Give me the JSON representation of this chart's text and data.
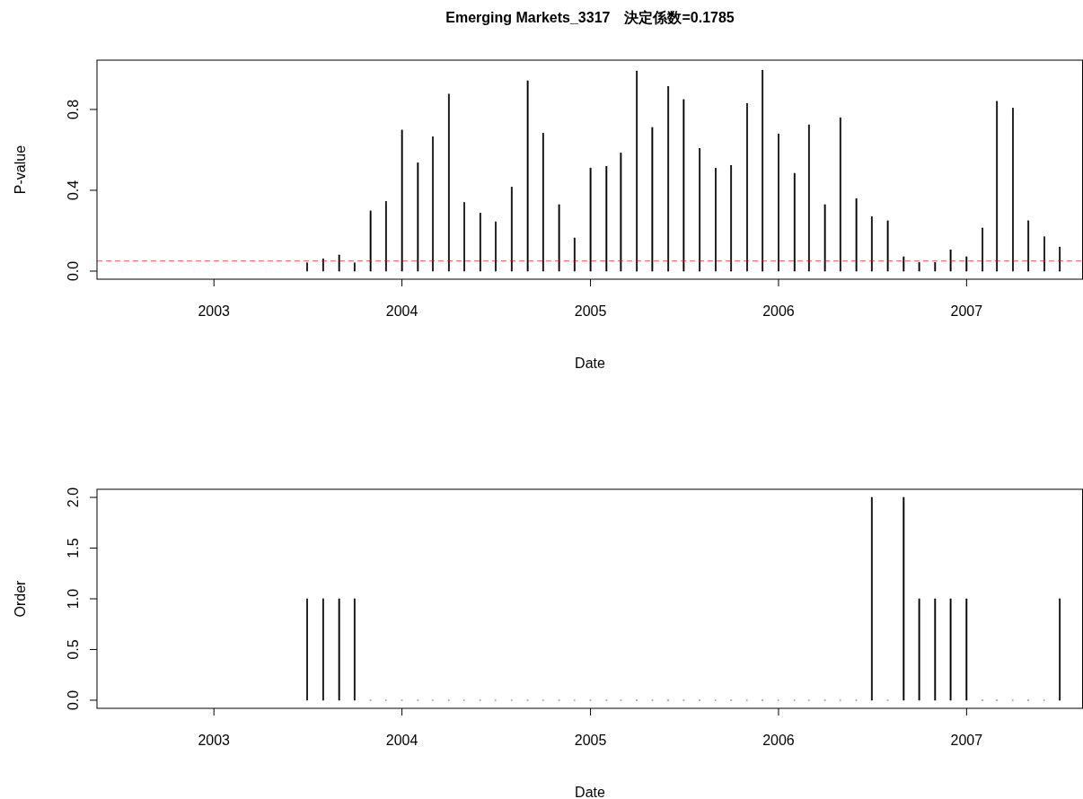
{
  "chart_data": [
    {
      "type": "bar",
      "title": "Emerging Markets_3317　決定係数=0.1785",
      "xlabel": "Date",
      "ylabel": "P-value",
      "x": [
        "2003-07",
        "2003-08",
        "2003-09",
        "2003-10",
        "2003-11",
        "2003-12",
        "2004-01",
        "2004-02",
        "2004-03",
        "2004-04",
        "2004-05",
        "2004-06",
        "2004-07",
        "2004-08",
        "2004-09",
        "2004-10",
        "2004-11",
        "2004-12",
        "2005-01",
        "2005-02",
        "2005-03",
        "2005-04",
        "2005-05",
        "2005-06",
        "2005-07",
        "2005-08",
        "2005-09",
        "2005-10",
        "2005-11",
        "2005-12",
        "2006-01",
        "2006-02",
        "2006-03",
        "2006-04",
        "2006-05",
        "2006-06",
        "2006-07",
        "2006-08",
        "2006-09",
        "2006-10",
        "2006-11",
        "2006-12",
        "2007-01",
        "2007-02",
        "2007-03",
        "2007-04",
        "2007-05",
        "2007-06",
        "2007-07"
      ],
      "series": [
        {
          "color": "#000000",
          "values": [
            0.041,
            0.061,
            0.08,
            0.041,
            0.298,
            0.344,
            0.698,
            0.536,
            0.665,
            0.876,
            0.339,
            0.287,
            0.244,
            0.415,
            0.942,
            0.683,
            0.329,
            0.164,
            0.51,
            0.518,
            0.585,
            0.99,
            0.711,
            0.914,
            0.849,
            0.607,
            0.51,
            0.523,
            0.83,
            0.994,
            0.679,
            0.484,
            0.724,
            0.329,
            0.759,
            0.359,
            0.27,
            0.249,
            0.071,
            0.043,
            0.043,
            0.104,
            0.071,
            0.213,
            0.84,
            0.806,
            0.249,
            0.17,
            0.119
          ]
        }
      ],
      "xlim": [
        "2002-05-19",
        "2007-08-15"
      ],
      "xticks": [
        {
          "value": "2003",
          "label": "2003"
        },
        {
          "value": "2004",
          "label": "2004"
        },
        {
          "value": "2005",
          "label": "2005"
        },
        {
          "value": "2006",
          "label": "2006"
        },
        {
          "value": "2007",
          "label": "2007"
        }
      ],
      "ylim": [
        -0.04,
        1.044
      ],
      "yticks": [
        {
          "value": 0,
          "label": "0.0"
        },
        {
          "value": 0.4,
          "label": "0.4"
        },
        {
          "value": 0.8,
          "label": "0.8"
        }
      ],
      "ref_lines": [
        {
          "axis": "y",
          "value": 0.05,
          "color": "#ff0000",
          "line_style": "dashed"
        }
      ]
    },
    {
      "type": "bar",
      "xlabel": "Date",
      "ylabel": "Order",
      "x": [
        "2003-07",
        "2003-08",
        "2003-09",
        "2003-10",
        "2003-11",
        "2003-12",
        "2004-01",
        "2004-02",
        "2004-03",
        "2004-04",
        "2004-05",
        "2004-06",
        "2004-07",
        "2004-08",
        "2004-09",
        "2004-10",
        "2004-11",
        "2004-12",
        "2005-01",
        "2005-02",
        "2005-03",
        "2005-04",
        "2005-05",
        "2005-06",
        "2005-07",
        "2005-08",
        "2005-09",
        "2005-10",
        "2005-11",
        "2005-12",
        "2006-01",
        "2006-02",
        "2006-03",
        "2006-04",
        "2006-05",
        "2006-06",
        "2006-07",
        "2006-08",
        "2006-09",
        "2006-10",
        "2006-11",
        "2006-12",
        "2007-01",
        "2007-02",
        "2007-03",
        "2007-04",
        "2007-05",
        "2007-06",
        "2007-07"
      ],
      "series": [
        {
          "color": "#000000",
          "values": [
            1,
            1,
            1,
            1,
            0,
            0,
            0,
            0,
            0,
            0,
            0,
            0,
            0,
            0,
            0,
            0,
            0,
            0,
            0,
            0,
            0,
            0,
            0,
            0,
            0,
            0,
            0,
            0,
            0,
            0,
            0,
            0,
            0,
            0,
            0,
            0,
            2,
            0,
            2,
            1,
            1,
            1,
            1,
            0,
            0,
            0,
            0,
            0,
            1
          ]
        }
      ],
      "xlim": [
        "2002-05-19",
        "2007-08-15"
      ],
      "xticks": [
        {
          "value": "2003",
          "label": "2003"
        },
        {
          "value": "2004",
          "label": "2004"
        },
        {
          "value": "2005",
          "label": "2005"
        },
        {
          "value": "2006",
          "label": "2006"
        },
        {
          "value": "2007",
          "label": "2007"
        }
      ],
      "ylim": [
        -0.08,
        2.08
      ],
      "yticks": [
        {
          "value": 0,
          "label": "0.0"
        },
        {
          "value": 0.5,
          "label": "0.5"
        },
        {
          "value": 1,
          "label": "1.0"
        },
        {
          "value": 1.5,
          "label": "1.5"
        },
        {
          "value": 2,
          "label": "2.0"
        }
      ]
    }
  ]
}
